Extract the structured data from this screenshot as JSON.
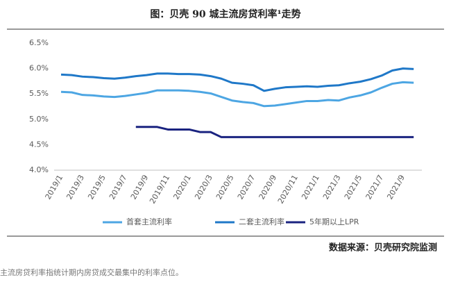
{
  "chart_data": {
    "type": "line",
    "title": "图：贝壳 90 城主流房贷利率¹走势",
    "source": "数据来源：贝壳研究院监测",
    "note": "主流房贷利率指统计期内房贷成交最集中的利率点位。",
    "categories": [
      "2019/1",
      null,
      "2019/3",
      null,
      "2019/5",
      null,
      "2019/7",
      null,
      "2019/9",
      null,
      "2019/11",
      null,
      "2020/1",
      null,
      "2020/3",
      null,
      "2020/5",
      null,
      "2020/7",
      null,
      "2020/9",
      null,
      "2020/11",
      null,
      "2021/1",
      null,
      "2021/3",
      null,
      "2021/5",
      null,
      "2021/7",
      null,
      "2021/9",
      null
    ],
    "series": [
      {
        "name": "首套主流利率",
        "color": "#4da6e3",
        "values": [
          5.54,
          5.53,
          5.48,
          5.47,
          5.45,
          5.44,
          5.46,
          5.49,
          5.52,
          5.57,
          5.57,
          5.57,
          5.56,
          5.54,
          5.51,
          5.44,
          5.37,
          5.34,
          5.32,
          5.26,
          5.27,
          5.3,
          5.33,
          5.36,
          5.36,
          5.38,
          5.37,
          5.43,
          5.47,
          5.53,
          5.62,
          5.7,
          5.73,
          5.72
        ]
      },
      {
        "name": "二套主流利率",
        "color": "#1f78c8",
        "values": [
          5.88,
          5.87,
          5.84,
          5.83,
          5.81,
          5.8,
          5.82,
          5.85,
          5.87,
          5.9,
          5.9,
          5.89,
          5.89,
          5.88,
          5.85,
          5.8,
          5.72,
          5.7,
          5.67,
          5.56,
          5.6,
          5.63,
          5.64,
          5.65,
          5.64,
          5.66,
          5.67,
          5.71,
          5.74,
          5.79,
          5.86,
          5.96,
          6.0,
          5.99
        ]
      },
      {
        "name": "5年期以上LPR",
        "color": "#1a2380",
        "values": [
          null,
          null,
          null,
          null,
          null,
          null,
          null,
          4.85,
          4.85,
          4.85,
          4.8,
          4.8,
          4.8,
          4.75,
          4.75,
          4.65,
          4.65,
          4.65,
          4.65,
          4.65,
          4.65,
          4.65,
          4.65,
          4.65,
          4.65,
          4.65,
          4.65,
          4.65,
          4.65,
          4.65,
          4.65,
          4.65,
          4.65,
          4.65
        ]
      }
    ],
    "ylim": [
      4.0,
      6.5
    ],
    "yticks": [
      {
        "value": 4.0,
        "label": "4.0%"
      },
      {
        "value": 4.5,
        "label": "4.5%"
      },
      {
        "value": 5.0,
        "label": "5.0%"
      },
      {
        "value": 5.5,
        "label": "5.5%"
      },
      {
        "value": 6.0,
        "label": "6.0%"
      },
      {
        "value": 6.5,
        "label": "6.5%"
      }
    ],
    "legend": "bottom"
  }
}
